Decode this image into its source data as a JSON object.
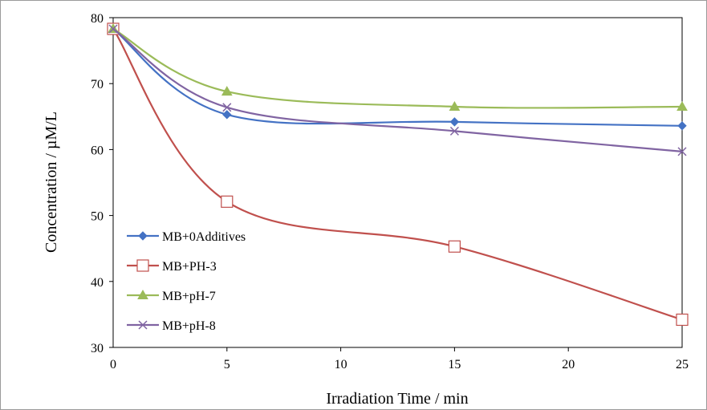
{
  "chart_data": {
    "type": "line",
    "xlabel": "Irradiation Time / min",
    "ylabel": "Concentration / µM/L",
    "xlim": [
      0,
      25
    ],
    "ylim": [
      30,
      80
    ],
    "x_ticks": [
      0,
      5,
      10,
      15,
      20,
      25
    ],
    "y_ticks": [
      30,
      40,
      50,
      60,
      70,
      80
    ],
    "x": [
      0,
      5,
      15,
      25
    ],
    "grid": false,
    "legend_position": "left",
    "series": [
      {
        "name": "MB+0Additives",
        "color": "#4472C4",
        "marker": "diamond",
        "values": [
          78.3,
          65.3,
          64.2,
          63.6
        ]
      },
      {
        "name": "MB+PH-3",
        "color": "#C0504D",
        "marker": "square-open",
        "values": [
          78.3,
          52.1,
          45.3,
          34.2
        ]
      },
      {
        "name": "MB+pH-7",
        "color": "#9BBB59",
        "marker": "triangle",
        "values": [
          78.3,
          68.8,
          66.5,
          66.5
        ]
      },
      {
        "name": "MB+pH-8",
        "color": "#8064A2",
        "marker": "x",
        "values": [
          78.3,
          66.4,
          62.8,
          59.7
        ]
      }
    ]
  }
}
